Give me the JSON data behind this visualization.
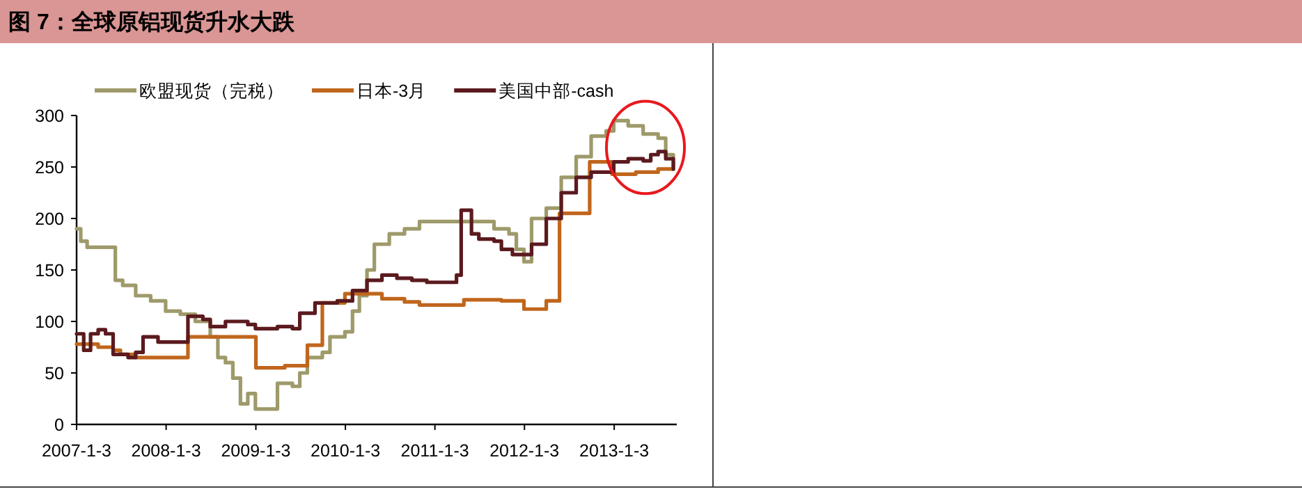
{
  "chart_data": {
    "type": "step",
    "title": "图 7：全球原铝现货升水大跌",
    "xlim": [
      "2007-01-03",
      "2013-09-15"
    ],
    "xticks": [
      {
        "value": "2007-01-03",
        "label": "2007-1-3"
      },
      {
        "value": "2008-01-03",
        "label": "2008-1-3"
      },
      {
        "value": "2009-01-03",
        "label": "2009-1-3"
      },
      {
        "value": "2010-01-03",
        "label": "2010-1-3"
      },
      {
        "value": "2011-01-03",
        "label": "2011-1-3"
      },
      {
        "value": "2012-01-03",
        "label": "2012-1-3"
      },
      {
        "value": "2013-01-03",
        "label": "2013-1-3"
      }
    ],
    "ylim": [
      0,
      300
    ],
    "yticks": [
      0,
      50,
      100,
      150,
      200,
      250,
      300
    ],
    "grid": false,
    "legend": "top",
    "series": [
      {
        "name": "欧盟现货（完税）",
        "color": "#9e9a6a",
        "x": [
          "2007-01-03",
          "2007-01-20",
          "2007-02-15",
          "2007-05-15",
          "2007-06-10",
          "2007-07-10",
          "2007-09-01",
          "2007-11-01",
          "2008-01-01",
          "2008-03-01",
          "2008-05-01",
          "2008-07-01",
          "2008-08-01",
          "2008-09-01",
          "2008-10-01",
          "2008-11-01",
          "2008-12-01",
          "2009-01-01",
          "2009-04-01",
          "2009-06-01",
          "2009-07-01",
          "2009-08-01",
          "2009-10-01",
          "2009-11-01",
          "2010-01-01",
          "2010-02-01",
          "2010-03-01",
          "2010-04-01",
          "2010-05-01",
          "2010-07-01",
          "2010-09-01",
          "2010-11-01",
          "2011-06-01",
          "2011-09-01",
          "2011-11-01",
          "2011-12-01",
          "2012-01-01",
          "2012-02-01",
          "2012-04-01",
          "2012-06-01",
          "2012-08-01",
          "2012-10-01",
          "2012-12-01",
          "2013-01-01",
          "2013-03-01",
          "2013-05-01",
          "2013-07-01",
          "2013-08-01",
          "2013-09-01"
        ],
        "values": [
          190,
          178,
          172,
          172,
          140,
          135,
          125,
          120,
          110,
          107,
          100,
          85,
          65,
          60,
          45,
          20,
          30,
          15,
          40,
          37,
          50,
          65,
          70,
          85,
          90,
          110,
          125,
          150,
          175,
          185,
          190,
          197,
          197,
          190,
          185,
          170,
          158,
          200,
          210,
          240,
          260,
          280,
          285,
          295,
          290,
          282,
          278,
          262,
          250
        ]
      },
      {
        "name": "日本-3月",
        "color": "#c0661c",
        "x": [
          "2007-01-03",
          "2007-04-01",
          "2007-06-01",
          "2007-07-01",
          "2007-09-01",
          "2008-04-01",
          "2009-01-03",
          "2009-05-01",
          "2009-08-01",
          "2009-10-01",
          "2010-01-01",
          "2010-06-01",
          "2010-09-01",
          "2010-11-01",
          "2011-05-01",
          "2011-10-01",
          "2012-01-01",
          "2012-04-01",
          "2012-05-25",
          "2012-09-25",
          "2012-12-25",
          "2013-04-01",
          "2013-07-01",
          "2013-09-01"
        ],
        "values": [
          78,
          75,
          72,
          68,
          65,
          85,
          55,
          57,
          77,
          118,
          127,
          122,
          119,
          116,
          121,
          120,
          112,
          120,
          205,
          255,
          243,
          245,
          248,
          248
        ]
      },
      {
        "name": "美国中部-cash",
        "color": "#5b1a1e",
        "x": [
          "2007-01-03",
          "2007-02-01",
          "2007-03-01",
          "2007-04-01",
          "2007-05-01",
          "2007-06-01",
          "2007-08-01",
          "2007-09-01",
          "2007-10-01",
          "2007-12-01",
          "2008-04-01",
          "2008-06-01",
          "2008-07-01",
          "2008-09-01",
          "2008-12-01",
          "2009-01-01",
          "2009-04-01",
          "2009-06-01",
          "2009-07-01",
          "2009-09-01",
          "2009-12-01",
          "2010-02-01",
          "2010-04-01",
          "2010-06-01",
          "2010-08-01",
          "2010-10-01",
          "2010-12-01",
          "2011-04-01",
          "2011-04-20",
          "2011-06-01",
          "2011-07-01",
          "2011-09-01",
          "2011-10-01",
          "2011-11-15",
          "2012-02-01",
          "2012-04-01",
          "2012-06-01",
          "2012-08-01",
          "2012-10-01",
          "2013-01-01",
          "2013-03-01",
          "2013-05-01",
          "2013-06-01",
          "2013-07-01",
          "2013-08-01",
          "2013-09-01"
        ],
        "values": [
          88,
          72,
          88,
          92,
          88,
          68,
          65,
          70,
          85,
          80,
          105,
          102,
          95,
          100,
          97,
          93,
          95,
          93,
          108,
          118,
          120,
          130,
          140,
          145,
          142,
          140,
          138,
          145,
          208,
          185,
          180,
          178,
          170,
          165,
          175,
          200,
          225,
          240,
          245,
          255,
          258,
          256,
          262,
          265,
          258,
          248
        ]
      }
    ]
  }
}
